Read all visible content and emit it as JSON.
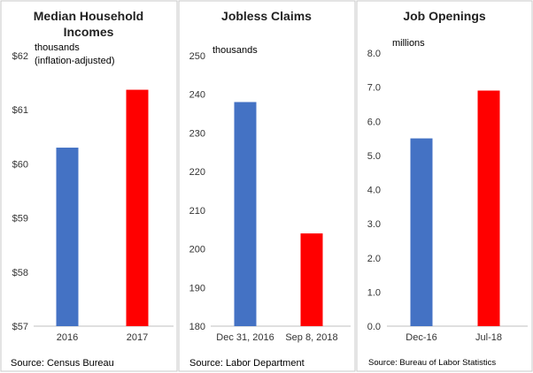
{
  "colors": {
    "blue": "#4472C4",
    "red": "#FF0000"
  },
  "chart_data": [
    {
      "type": "bar",
      "title_lines": [
        "Median Household",
        "Incomes"
      ],
      "unit_lines": [
        "thousands",
        "(inflation-adjusted)"
      ],
      "categories": [
        "2016",
        "2017"
      ],
      "values": [
        60.3,
        61.37
      ],
      "ylim": [
        57,
        62
      ],
      "yticks": [
        "$57",
        "$58",
        "$59",
        "$60",
        "$61",
        "$62"
      ],
      "source": "Source: Census Bureau",
      "grid": false
    },
    {
      "type": "bar",
      "title_lines": [
        "Jobless Claims"
      ],
      "unit_lines": [
        "thousands"
      ],
      "categories": [
        "Dec 31, 2016",
        "Sep 8, 2018"
      ],
      "values": [
        238,
        204
      ],
      "ylim": [
        180,
        250
      ],
      "yticks": [
        "180",
        "190",
        "200",
        "210",
        "220",
        "230",
        "240",
        "250"
      ],
      "source": "Source: Labor Department",
      "grid": false
    },
    {
      "type": "bar",
      "title_lines": [
        "Job Openings"
      ],
      "unit_lines": [
        "millions"
      ],
      "categories": [
        "Dec-16",
        "Jul-18"
      ],
      "values": [
        5.5,
        6.9
      ],
      "ylim": [
        0,
        8
      ],
      "yticks": [
        "0.0",
        "1.0",
        "2.0",
        "3.0",
        "4.0",
        "5.0",
        "6.0",
        "7.0",
        "8.0"
      ],
      "source": "Source:  Bureau  of Labor Statistics",
      "grid": false
    }
  ]
}
